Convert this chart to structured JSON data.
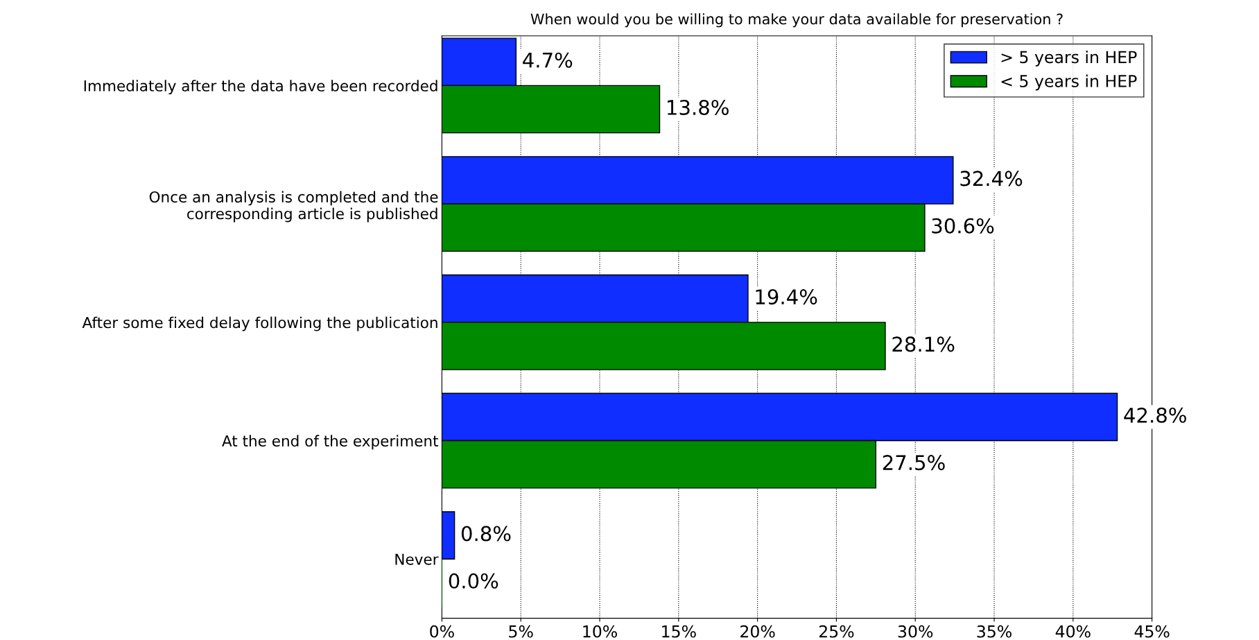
{
  "chart_data": {
    "type": "bar",
    "orientation": "horizontal",
    "title": "When would you be willing to make your data available for preservation ?",
    "categories": [
      "Immediately after the data have been recorded",
      "Once an analysis is completed and the\ncorresponding article is published",
      "After some fixed delay following the publication",
      "At the end of the experiment",
      "Never"
    ],
    "series": [
      {
        "name": "> 5 years in HEP",
        "color": "#0f2eff",
        "values": [
          4.7,
          32.4,
          19.4,
          42.8,
          0.8
        ],
        "value_labels": [
          "4.7%",
          "32.4%",
          "19.4%",
          "42.8%",
          "0.8%"
        ]
      },
      {
        "name": "< 5 years in HEP",
        "color": "#008a00",
        "values": [
          13.8,
          30.6,
          28.1,
          27.5,
          0.0
        ],
        "value_labels": [
          "13.8%",
          "30.6%",
          "28.1%",
          "27.5%",
          "0.0%"
        ]
      }
    ],
    "xlim": [
      0,
      45
    ],
    "xticks": [
      {
        "value": 0,
        "label": "0%"
      },
      {
        "value": 5,
        "label": "5%"
      },
      {
        "value": 10,
        "label": "10%"
      },
      {
        "value": 15,
        "label": "15%"
      },
      {
        "value": 20,
        "label": "20%"
      },
      {
        "value": 25,
        "label": "25%"
      },
      {
        "value": 30,
        "label": "30%"
      },
      {
        "value": 35,
        "label": "35%"
      },
      {
        "value": 40,
        "label": "40%"
      },
      {
        "value": 45,
        "label": "45%"
      }
    ],
    "grid": "x",
    "legend": "top right",
    "line_style": "dotted"
  }
}
